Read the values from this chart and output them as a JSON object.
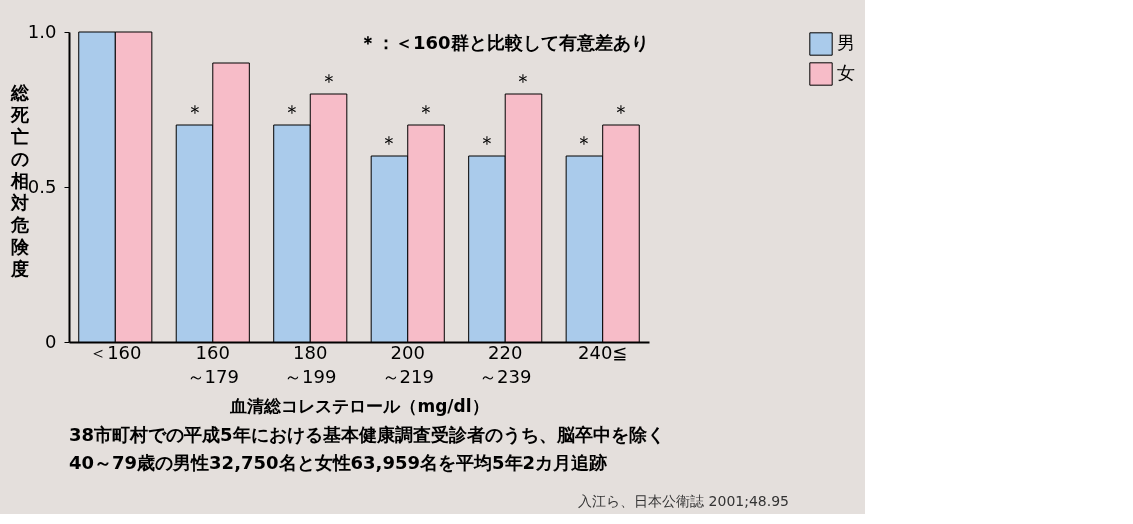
{
  "chart_data": {
    "type": "bar",
    "categories": [
      "＜160",
      "160\n～179",
      "180\n～199",
      "200\n～219",
      "220\n～239",
      "240≦"
    ],
    "series": [
      {
        "name": "男",
        "color": "#aacbeb",
        "values": [
          1.0,
          0.7,
          0.7,
          0.6,
          0.6,
          0.6
        ],
        "value_labels": [
          null,
          "＊",
          "＊",
          "＊",
          "＊",
          "＊"
        ]
      },
      {
        "name": "女",
        "color": "#f7bcc8",
        "values": [
          1.0,
          0.9,
          0.8,
          0.7,
          0.8,
          0.7
        ],
        "value_labels": [
          null,
          null,
          "＊",
          "＊",
          "＊",
          "＊"
        ]
      }
    ],
    "ylabel": "総死亡の相対危険度",
    "xlabel": "血清総コレステロール（mg/dl）",
    "ylim": [
      0,
      1
    ],
    "yticks": [
      0,
      0.5,
      {
        "value": 1,
        "label": "1.0"
      }
    ],
    "grid": false,
    "legend": "right",
    "annotations": [
      "＊：＜160群と比較して有意差あり",
      "38市町村での平成5年における基本健康調査受診者のうち、脳卒中を除く\n40～79歳の男性32,750名と女性63,959名を平均5年2カ月追跡",
      "入江ら、日本公衛誌 2001;48.95"
    ]
  }
}
